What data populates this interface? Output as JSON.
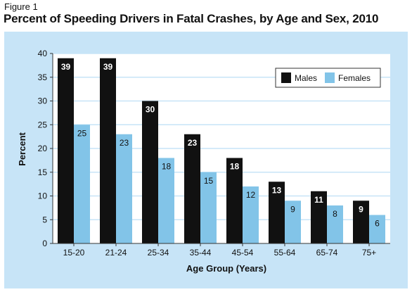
{
  "figure_label": "Figure 1",
  "title": "Percent of Speeding Drivers in Fatal Crashes, by Age and Sex, 2010",
  "colors": {
    "panel": "#c7e4f7",
    "males": "#111111",
    "females": "#82c4e8",
    "axis": "#333333"
  },
  "chart_data": {
    "type": "bar",
    "title": "Percent of Speeding Drivers in Fatal Crashes, by Age and Sex, 2010",
    "xlabel": "Age Group (Years)",
    "ylabel": "Percent",
    "ylim": [
      0,
      40
    ],
    "yticks": [
      0,
      5,
      10,
      15,
      20,
      25,
      30,
      35,
      40
    ],
    "grid": true,
    "legend": "top-right",
    "categories": [
      "15-20",
      "21-24",
      "25-34",
      "35-44",
      "45-54",
      "55-64",
      "65-74",
      "75+"
    ],
    "series": [
      {
        "name": "Males",
        "values": [
          39,
          39,
          30,
          23,
          18,
          13,
          11,
          9
        ]
      },
      {
        "name": "Females",
        "values": [
          25,
          23,
          18,
          15,
          12,
          9,
          8,
          6
        ]
      }
    ]
  }
}
